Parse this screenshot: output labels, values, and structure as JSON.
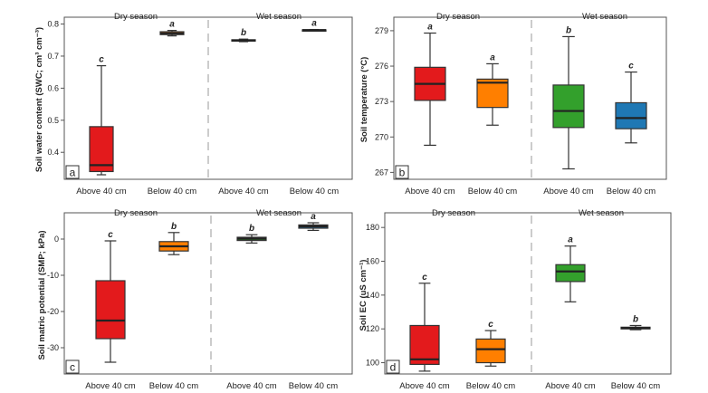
{
  "chart_data": [
    {
      "type": "boxplot",
      "panel": "a",
      "ylabel": "Soil water content (SWC; cm³ cm⁻³)",
      "ylim": [
        0.33,
        0.81
      ],
      "ticks": [
        0.4,
        0.5,
        0.6,
        0.7,
        0.8
      ],
      "tick_labels": [
        "0.4",
        "0.5",
        "0.6",
        "0.7",
        "0.8"
      ],
      "seasons": [
        "Dry season",
        "Wet season"
      ],
      "categories": [
        "Above 40 cm",
        "Below 40 cm",
        "Above 40 cm",
        "Below 40 cm"
      ],
      "boxes": [
        {
          "season": "Dry season",
          "category": "Above 40 cm",
          "min": 0.33,
          "q1": 0.34,
          "median": 0.36,
          "q3": 0.48,
          "max": 0.67,
          "color": "#e31a1c",
          "letter": "c"
        },
        {
          "season": "Dry season",
          "category": "Below 40 cm",
          "min": 0.763,
          "q1": 0.767,
          "median": 0.771,
          "q3": 0.776,
          "max": 0.78,
          "color": "#ff7f00",
          "letter": "a"
        },
        {
          "season": "Wet season",
          "category": "Above 40 cm",
          "min": 0.745,
          "q1": 0.747,
          "median": 0.749,
          "q3": 0.751,
          "max": 0.753,
          "color": "#33a02c",
          "letter": "b"
        },
        {
          "season": "Wet season",
          "category": "Below 40 cm",
          "min": 0.779,
          "q1": 0.78,
          "median": 0.781,
          "q3": 0.782,
          "max": 0.783,
          "color": "#1f78b4",
          "letter": "a"
        }
      ]
    },
    {
      "type": "boxplot",
      "panel": "b",
      "ylabel": "Soil temperature (°C)",
      "ylim": [
        266.8,
        279.3
      ],
      "ticks": [
        267,
        270,
        273,
        276,
        279
      ],
      "tick_labels": [
        "267",
        "270",
        "273",
        "276",
        "279"
      ],
      "seasons": [
        "Dry season",
        "Wet season"
      ],
      "categories": [
        "Above 40 cm",
        "Below 40 cm",
        "Above 40 cm",
        "Below 40 cm"
      ],
      "boxes": [
        {
          "season": "Dry season",
          "category": "Above 40 cm",
          "min": 269.3,
          "q1": 273.1,
          "median": 274.5,
          "q3": 275.9,
          "max": 278.8,
          "color": "#e31a1c",
          "letter": "a"
        },
        {
          "season": "Dry season",
          "category": "Below 40 cm",
          "min": 271.0,
          "q1": 272.5,
          "median": 274.6,
          "q3": 274.9,
          "max": 276.2,
          "color": "#ff7f00",
          "letter": "a"
        },
        {
          "season": "Wet season",
          "category": "Above 40 cm",
          "min": 267.3,
          "q1": 270.8,
          "median": 272.2,
          "q3": 274.4,
          "max": 278.5,
          "color": "#33a02c",
          "letter": "b"
        },
        {
          "season": "Wet season",
          "category": "Below 40 cm",
          "min": 269.5,
          "q1": 270.7,
          "median": 271.6,
          "q3": 272.9,
          "max": 275.5,
          "color": "#1f78b4",
          "letter": "c"
        }
      ]
    },
    {
      "type": "boxplot",
      "panel": "c",
      "ylabel": "Soil matric potential (SMP; kPa)",
      "ylim": [
        -36,
        6
      ],
      "ticks": [
        -30,
        -20,
        -10,
        0
      ],
      "tick_labels": [
        "-30",
        "-20",
        "-10",
        "0"
      ],
      "seasons": [
        "Dry season",
        "Wet season"
      ],
      "categories": [
        "Above 40 cm",
        "Below 40 cm",
        "Above 40 cm",
        "Below 40 cm"
      ],
      "boxes": [
        {
          "season": "Dry season",
          "category": "Above 40 cm",
          "min": -34,
          "q1": -27.5,
          "median": -22.5,
          "q3": -11.5,
          "max": -0.5,
          "color": "#e31a1c",
          "letter": "c"
        },
        {
          "season": "Dry season",
          "category": "Below 40 cm",
          "min": -4.3,
          "q1": -3.3,
          "median": -2.0,
          "q3": -0.7,
          "max": 1.8,
          "color": "#ff7f00",
          "letter": "b"
        },
        {
          "season": "Wet season",
          "category": "Above 40 cm",
          "min": -1.1,
          "q1": -0.4,
          "median": 0.1,
          "q3": 0.5,
          "max": 1.2,
          "color": "#33a02c",
          "letter": "b"
        },
        {
          "season": "Wet season",
          "category": "Below 40 cm",
          "min": 2.4,
          "q1": 3.0,
          "median": 3.5,
          "q3": 3.9,
          "max": 4.5,
          "color": "#1f78b4",
          "letter": "a"
        }
      ]
    },
    {
      "type": "boxplot",
      "panel": "d",
      "ylabel": "Soil EC (uS cm⁻¹)",
      "ylim": [
        96,
        186
      ],
      "ticks": [
        100,
        120,
        140,
        160,
        180
      ],
      "tick_labels": [
        "100",
        "120",
        "140",
        "160",
        "180"
      ],
      "seasons": [
        "Dry season",
        "Wet season"
      ],
      "categories": [
        "Above 40 cm",
        "Below 40 cm",
        "Above 40 cm",
        "Below 40 cm"
      ],
      "boxes": [
        {
          "season": "Dry season",
          "category": "Above 40 cm",
          "min": 95,
          "q1": 99,
          "median": 102,
          "q3": 122,
          "max": 147,
          "color": "#e31a1c",
          "letter": "c"
        },
        {
          "season": "Dry season",
          "category": "Below 40 cm",
          "min": 98,
          "q1": 100,
          "median": 108,
          "q3": 114,
          "max": 119,
          "color": "#ff7f00",
          "letter": "c"
        },
        {
          "season": "Wet season",
          "category": "Above 40 cm",
          "min": 136,
          "q1": 148,
          "median": 154,
          "q3": 158,
          "max": 169,
          "color": "#33a02c",
          "letter": "a"
        },
        {
          "season": "Wet season",
          "category": "Below 40 cm",
          "min": 119.5,
          "q1": 120,
          "median": 120.5,
          "q3": 121,
          "max": 122,
          "color": "#1f78b4",
          "letter": "b"
        }
      ]
    }
  ]
}
